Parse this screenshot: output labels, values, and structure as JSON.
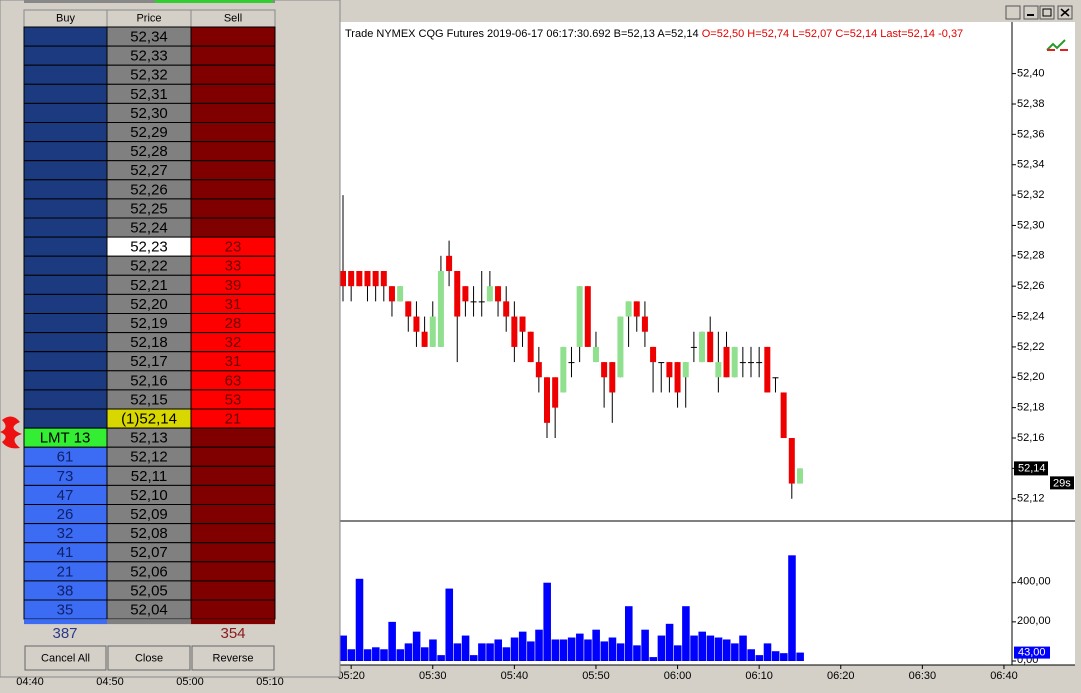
{
  "ladder": {
    "headers": [
      "Buy",
      "Price",
      "Sell"
    ],
    "rows": [
      {
        "price": "52,34"
      },
      {
        "price": "52,33"
      },
      {
        "price": "52,32"
      },
      {
        "price": "52,31"
      },
      {
        "price": "52,30"
      },
      {
        "price": "52,29"
      },
      {
        "price": "52,28"
      },
      {
        "price": "52,27"
      },
      {
        "price": "52,26"
      },
      {
        "price": "52,25"
      },
      {
        "price": "52,24"
      },
      {
        "price": "52,23",
        "sell": 23,
        "highlight": "#ffffff"
      },
      {
        "price": "52,22",
        "sell": 33
      },
      {
        "price": "52,21",
        "sell": 39
      },
      {
        "price": "52,20",
        "sell": 31
      },
      {
        "price": "52,19",
        "sell": 28
      },
      {
        "price": "52,18",
        "sell": 32
      },
      {
        "price": "52,17",
        "sell": 31
      },
      {
        "price": "52,16",
        "sell": 63
      },
      {
        "price": "52,15",
        "sell": 53
      },
      {
        "price": "(1)52,14",
        "sell": 21,
        "highlight": "#d8d800"
      },
      {
        "price": "52,13",
        "order": "LMT 13"
      },
      {
        "price": "52,12",
        "buy": 61
      },
      {
        "price": "52,11",
        "buy": 73
      },
      {
        "price": "52,10",
        "buy": 47
      },
      {
        "price": "52,09",
        "buy": 26
      },
      {
        "price": "52,08",
        "buy": 32
      },
      {
        "price": "52,07",
        "buy": 41
      },
      {
        "price": "52,06",
        "buy": 21
      },
      {
        "price": "52,05",
        "buy": 38
      },
      {
        "price": "52,04",
        "buy": 35
      }
    ],
    "buy_total": 387,
    "sell_total": 354,
    "buttons": [
      "Cancel All",
      "Close",
      "Reverse"
    ]
  },
  "chart": {
    "title": "Trade NYMEX CQG Futures 2019-06-17 06:17:30.692 B=52,13 A=52,14",
    "title_red": "O=52,50 H=52,74 L=52,07 C=52,14 Last=52,14 -0,37",
    "ylim": [
      52.106,
      52.434
    ],
    "yticks": [
      {
        "value": 52.4,
        "label": "52,40"
      },
      {
        "value": 52.38,
        "label": "52,38"
      },
      {
        "value": 52.36,
        "label": "52,36"
      },
      {
        "value": 52.34,
        "label": "52,34"
      },
      {
        "value": 52.32,
        "label": "52,32"
      },
      {
        "value": 52.3,
        "label": "52,30"
      },
      {
        "value": 52.28,
        "label": "52,28"
      },
      {
        "value": 52.26,
        "label": "52,26"
      },
      {
        "value": 52.24,
        "label": "52,24"
      },
      {
        "value": 52.22,
        "label": "52,22"
      },
      {
        "value": 52.2,
        "label": "52,20"
      },
      {
        "value": 52.18,
        "label": "52,18"
      },
      {
        "value": 52.16,
        "label": "52,16"
      },
      {
        "value": 52.14,
        "label": "52,14"
      },
      {
        "value": 52.12,
        "label": "52,12"
      }
    ],
    "last": {
      "value": 52.14,
      "label": "52,14"
    },
    "timer": "29s",
    "candles": [
      [
        52.27,
        52.32,
        52.25,
        52.26
      ],
      [
        52.27,
        52.27,
        52.25,
        52.26
      ],
      [
        52.27,
        52.27,
        52.26,
        52.26
      ],
      [
        52.27,
        52.27,
        52.25,
        52.26
      ],
      [
        52.27,
        52.27,
        52.25,
        52.26
      ],
      [
        52.27,
        52.27,
        52.25,
        52.26
      ],
      [
        52.26,
        52.26,
        52.24,
        52.25
      ],
      [
        52.25,
        52.26,
        52.25,
        52.26
      ],
      [
        52.25,
        52.25,
        52.23,
        52.24
      ],
      [
        52.24,
        52.25,
        52.22,
        52.23
      ],
      [
        52.23,
        52.24,
        52.22,
        52.22
      ],
      [
        52.22,
        52.25,
        52.22,
        52.24
      ],
      [
        52.22,
        52.28,
        52.22,
        52.27
      ],
      [
        52.28,
        52.29,
        52.26,
        52.27
      ],
      [
        52.27,
        52.27,
        52.21,
        52.24
      ],
      [
        52.26,
        52.26,
        52.24,
        52.25
      ],
      [
        52.25,
        52.26,
        52.24,
        52.25
      ],
      [
        52.25,
        52.27,
        52.24,
        52.25
      ],
      [
        52.25,
        52.27,
        52.25,
        52.26
      ],
      [
        52.26,
        52.26,
        52.24,
        52.25
      ],
      [
        52.25,
        52.26,
        52.23,
        52.24
      ],
      [
        52.24,
        52.25,
        52.21,
        52.22
      ],
      [
        52.24,
        52.24,
        52.22,
        52.23
      ],
      [
        52.23,
        52.23,
        52.21,
        52.21
      ],
      [
        52.21,
        52.22,
        52.19,
        52.2
      ],
      [
        52.2,
        52.2,
        52.16,
        52.17
      ],
      [
        52.2,
        52.2,
        52.16,
        52.18
      ],
      [
        52.19,
        52.22,
        52.19,
        52.22
      ],
      [
        52.21,
        52.22,
        52.2,
        52.21
      ],
      [
        52.22,
        52.26,
        52.21,
        52.26
      ],
      [
        52.26,
        52.26,
        52.22,
        52.22
      ],
      [
        52.21,
        52.23,
        52.21,
        52.22
      ],
      [
        52.21,
        52.21,
        52.18,
        52.2
      ],
      [
        52.21,
        52.21,
        52.17,
        52.19
      ],
      [
        52.2,
        52.24,
        52.2,
        52.24
      ],
      [
        52.24,
        52.25,
        52.22,
        52.25
      ],
      [
        52.25,
        52.25,
        52.23,
        52.24
      ],
      [
        52.24,
        52.25,
        52.22,
        52.23
      ],
      [
        52.22,
        52.22,
        52.19,
        52.21
      ],
      [
        52.21,
        52.21,
        52.19,
        52.21
      ],
      [
        52.21,
        52.21,
        52.19,
        52.2
      ],
      [
        52.21,
        52.21,
        52.18,
        52.19
      ],
      [
        52.2,
        52.21,
        52.18,
        52.21
      ],
      [
        52.22,
        52.23,
        52.21,
        52.22
      ],
      [
        52.21,
        52.23,
        52.21,
        52.23
      ],
      [
        52.23,
        52.24,
        52.21,
        52.21
      ],
      [
        52.2,
        52.23,
        52.19,
        52.21
      ],
      [
        52.22,
        52.23,
        52.2,
        52.2
      ],
      [
        52.2,
        52.22,
        52.2,
        52.22
      ],
      [
        52.21,
        52.22,
        52.2,
        52.21
      ],
      [
        52.21,
        52.22,
        52.2,
        52.21
      ],
      [
        52.21,
        52.22,
        52.2,
        52.21
      ],
      [
        52.22,
        52.22,
        52.19,
        52.19
      ],
      [
        52.2,
        52.2,
        52.19,
        52.2
      ],
      [
        52.19,
        52.19,
        52.16,
        52.16
      ],
      [
        52.16,
        52.16,
        52.12,
        52.13
      ],
      [
        52.13,
        52.14,
        52.13,
        52.14
      ]
    ],
    "volume": [
      130,
      60,
      420,
      60,
      70,
      60,
      200,
      60,
      90,
      150,
      70,
      110,
      30,
      370,
      90,
      130,
      30,
      90,
      90,
      110,
      70,
      120,
      150,
      100,
      160,
      400,
      110,
      110,
      120,
      140,
      110,
      160,
      100,
      120,
      90,
      280,
      80,
      160,
      20,
      130,
      190,
      80,
      280,
      130,
      150,
      130,
      120,
      110,
      90,
      130,
      60,
      30,
      90,
      50,
      40,
      540,
      43
    ],
    "vlim": [
      0,
      700
    ],
    "vticks": [
      {
        "value": 400,
        "label": "400,00"
      },
      {
        "value": 200,
        "label": "200,00"
      },
      {
        "value": 0,
        "label": "0,00"
      }
    ],
    "last_volume": {
      "value": 43,
      "label": "43,00"
    },
    "xticks": [
      "05:20",
      "05:30",
      "05:40",
      "05:50",
      "06:00",
      "06:10",
      "06:20",
      "06:30",
      "06:40"
    ],
    "xticks_hidden": [
      "04:40",
      "04:50",
      "05:00",
      "05:10"
    ]
  }
}
